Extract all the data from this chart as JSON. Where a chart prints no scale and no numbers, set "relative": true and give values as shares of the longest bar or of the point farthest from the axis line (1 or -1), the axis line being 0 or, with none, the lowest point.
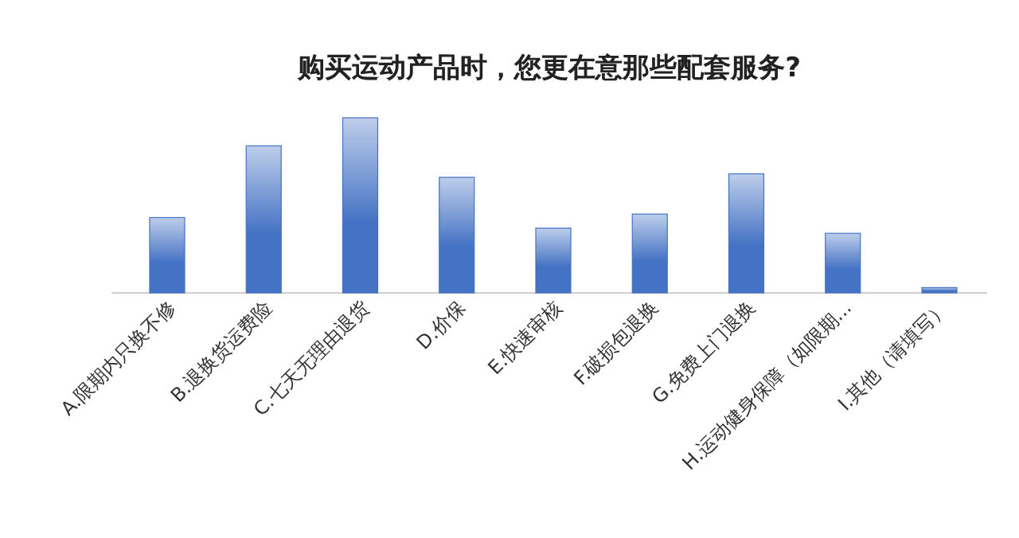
{
  "chart_data": {
    "type": "bar",
    "title": "购买运动产品时，您更在意那些配套服务?",
    "relative": true,
    "categories": [
      "A.限期内只换不修",
      "B.退换货运费险",
      "C.七天无理由退货",
      "D.价保",
      "E.快速审核",
      "F.破损包退换",
      "G.免费上门退换",
      "H.运动健身保障（如限期...",
      "I.其他（请填写）"
    ],
    "values": [
      0.43,
      0.84,
      1,
      0.66,
      0.37,
      0.45,
      0.68,
      0.34,
      0.03
    ],
    "color": "#4472c4"
  }
}
